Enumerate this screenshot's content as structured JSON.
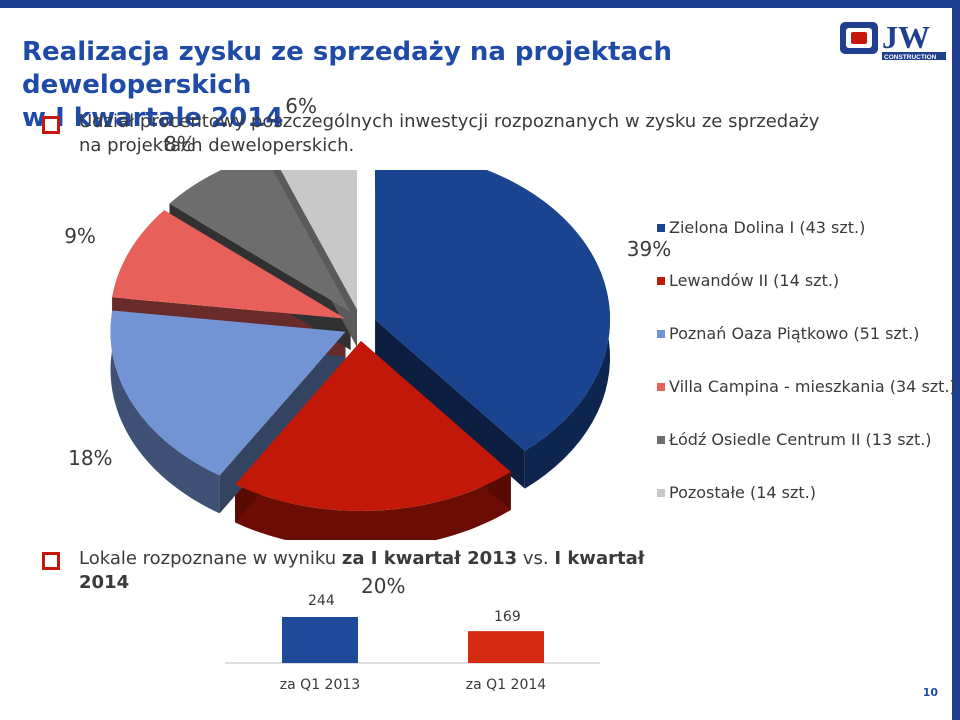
{
  "title": {
    "line1": "Realizacja zysku ze sprzedaży na projektach deweloperskich",
    "line2": "w I kwartale 2014"
  },
  "bullet1": "Udział procentowy poszczególnych inwestycji rozpoznanych w zysku ze sprzedaży na projektach deweloperskich.",
  "bullet2": {
    "prefix": "Lokale rozpoznane w wyniku ",
    "bold1": "za I kwartał 2013",
    "mid": " vs. ",
    "bold2": "I kwartał 2014"
  },
  "logo": {
    "text": "JW",
    "subtext": "CONSTRUCTION"
  },
  "page_number": "10",
  "colors": {
    "title": "#1e4aa8",
    "bullet": "#c7170d",
    "bar_2013": "#1f4a9c",
    "bar_2014": "#d42a10"
  },
  "chart_data": [
    {
      "type": "pie",
      "style": "3d-exploded",
      "labels": [
        "Zielona Dolina I (43 szt.)",
        "Lewandów II (14 szt.)",
        "Poznań Oaza Piątkowo (51 szt.)",
        "Villa Campina - mieszkania (34 szt.)",
        "Łódź Osiedle Centrum II (13 szt.)",
        "Pozostałe (14 szt.)"
      ],
      "values": [
        39,
        20,
        18,
        9,
        8,
        6
      ],
      "value_labels": [
        "39%",
        "20%",
        "18%",
        "9%",
        "8%",
        "6%"
      ],
      "colors": [
        "#1a4490",
        "#c21807",
        "#7394d4",
        "#e8605a",
        "#6d6d6d",
        "#c8c8c8"
      ],
      "legend_position": "right"
    },
    {
      "type": "bar",
      "categories": [
        "za Q1 2013",
        "za Q1 2014"
      ],
      "values": [
        244,
        169
      ],
      "value_labels": [
        "244",
        "169"
      ],
      "colors": [
        "#1f4a9c",
        "#d42a10"
      ]
    }
  ]
}
